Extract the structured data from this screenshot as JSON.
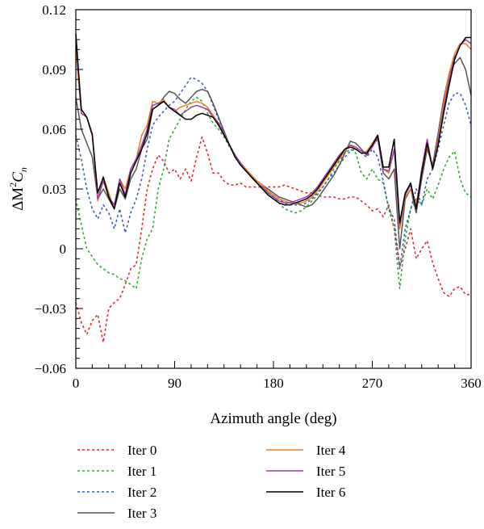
{
  "chart_data": {
    "type": "line",
    "title": "",
    "xlabel": "Azimuth angle (deg)",
    "ylabel_parts": {
      "base": "ΔM",
      "sup": "2",
      "mid": "C",
      "sub": "n"
    },
    "xlim": [
      0,
      360
    ],
    "ylim": [
      -0.06,
      0.12
    ],
    "xticks": [
      0,
      90,
      180,
      270,
      360
    ],
    "yticks": [
      -0.06,
      -0.03,
      0,
      0.03,
      0.06,
      0.09,
      0.12
    ],
    "ytick_labels": [
      "−0.06",
      "−0.03",
      "0",
      "0.03",
      "0.06",
      "0.09",
      "0.12"
    ],
    "grid": false,
    "legend_placement": "below",
    "x": [
      0,
      5,
      10,
      15,
      20,
      25,
      30,
      35,
      40,
      45,
      50,
      55,
      60,
      65,
      70,
      75,
      80,
      85,
      90,
      95,
      100,
      105,
      110,
      115,
      120,
      125,
      130,
      135,
      140,
      145,
      150,
      155,
      160,
      165,
      170,
      175,
      180,
      185,
      190,
      195,
      200,
      205,
      210,
      215,
      220,
      225,
      230,
      235,
      240,
      245,
      250,
      255,
      260,
      265,
      270,
      275,
      280,
      285,
      290,
      295,
      300,
      305,
      310,
      315,
      320,
      325,
      330,
      335,
      340,
      345,
      350,
      355,
      360
    ],
    "series": [
      {
        "name": "Iter 0",
        "color": "#e0282c",
        "dash": "3,3",
        "values": [
          -0.027,
          -0.037,
          -0.043,
          -0.036,
          -0.033,
          -0.047,
          -0.03,
          -0.027,
          -0.025,
          -0.018,
          -0.01,
          -0.008,
          0.01,
          0.03,
          0.04,
          0.047,
          0.044,
          0.038,
          0.04,
          0.035,
          0.04,
          0.034,
          0.046,
          0.056,
          0.048,
          0.038,
          0.038,
          0.034,
          0.032,
          0.032,
          0.033,
          0.031,
          0.031,
          0.031,
          0.031,
          0.031,
          0.031,
          0.031,
          0.032,
          0.031,
          0.03,
          0.029,
          0.028,
          0.028,
          0.027,
          0.026,
          0.026,
          0.026,
          0.025,
          0.025,
          0.026,
          0.026,
          0.024,
          0.022,
          0.019,
          0.02,
          0.016,
          0.022,
          0.01,
          -0.009,
          0.0,
          0.01,
          -0.005,
          0.0,
          0.004,
          -0.007,
          -0.015,
          -0.022,
          -0.024,
          -0.02,
          -0.019,
          -0.023,
          -0.023
        ]
      },
      {
        "name": "Iter 1",
        "color": "#2ab02a",
        "dash": "3,3",
        "values": [
          0.025,
          0.012,
          0.0,
          -0.004,
          -0.008,
          -0.01,
          -0.012,
          -0.013,
          -0.015,
          -0.016,
          -0.018,
          -0.02,
          -0.005,
          0.005,
          0.01,
          0.03,
          0.04,
          0.055,
          0.06,
          0.065,
          0.07,
          0.074,
          0.076,
          0.074,
          0.068,
          0.063,
          0.06,
          0.056,
          0.051,
          0.047,
          0.043,
          0.04,
          0.036,
          0.033,
          0.031,
          0.028,
          0.026,
          0.023,
          0.02,
          0.019,
          0.018,
          0.019,
          0.021,
          0.024,
          0.027,
          0.031,
          0.035,
          0.04,
          0.044,
          0.048,
          0.05,
          0.048,
          0.038,
          0.035,
          0.04,
          0.035,
          0.033,
          0.02,
          0.01,
          -0.02,
          0.005,
          0.02,
          0.025,
          0.022,
          0.03,
          0.025,
          0.032,
          0.04,
          0.046,
          0.049,
          0.035,
          0.028,
          0.026
        ]
      },
      {
        "name": "Iter 2",
        "color": "#3c5fb4",
        "dash": "3,3",
        "values": [
          0.057,
          0.045,
          0.03,
          0.02,
          0.015,
          0.022,
          0.018,
          0.01,
          0.02,
          0.008,
          0.018,
          0.025,
          0.035,
          0.05,
          0.062,
          0.066,
          0.069,
          0.072,
          0.074,
          0.078,
          0.082,
          0.086,
          0.085,
          0.083,
          0.079,
          0.072,
          0.065,
          0.059,
          0.052,
          0.047,
          0.042,
          0.039,
          0.036,
          0.033,
          0.031,
          0.029,
          0.027,
          0.025,
          0.023,
          0.022,
          0.022,
          0.022,
          0.023,
          0.025,
          0.028,
          0.031,
          0.035,
          0.038,
          0.042,
          0.046,
          0.049,
          0.05,
          0.048,
          0.046,
          0.05,
          0.046,
          0.034,
          0.02,
          0.015,
          -0.01,
          0.01,
          0.02,
          0.03,
          0.022,
          0.035,
          0.04,
          0.05,
          0.062,
          0.073,
          0.078,
          0.078,
          0.072,
          0.062
        ]
      },
      {
        "name": "Iter 3",
        "color": "#555555",
        "dash": "",
        "values": [
          0.076,
          0.06,
          0.053,
          0.046,
          0.025,
          0.03,
          0.025,
          0.02,
          0.03,
          0.025,
          0.035,
          0.04,
          0.05,
          0.055,
          0.07,
          0.072,
          0.076,
          0.079,
          0.078,
          0.075,
          0.073,
          0.076,
          0.079,
          0.08,
          0.079,
          0.073,
          0.066,
          0.059,
          0.052,
          0.047,
          0.043,
          0.039,
          0.036,
          0.034,
          0.032,
          0.03,
          0.028,
          0.026,
          0.025,
          0.024,
          0.023,
          0.022,
          0.021,
          0.022,
          0.025,
          0.029,
          0.033,
          0.037,
          0.042,
          0.048,
          0.054,
          0.053,
          0.05,
          0.047,
          0.052,
          0.055,
          0.038,
          0.035,
          0.04,
          0.0,
          0.025,
          0.03,
          0.018,
          0.035,
          0.05,
          0.042,
          0.058,
          0.075,
          0.088,
          0.093,
          0.096,
          0.09,
          0.077
        ]
      },
      {
        "name": "Iter 4",
        "color": "#f07c1e",
        "dash": "",
        "values": [
          0.1,
          0.068,
          0.066,
          0.058,
          0.024,
          0.036,
          0.028,
          0.02,
          0.035,
          0.03,
          0.04,
          0.045,
          0.057,
          0.062,
          0.074,
          0.073,
          0.075,
          0.071,
          0.069,
          0.071,
          0.072,
          0.073,
          0.074,
          0.073,
          0.071,
          0.067,
          0.063,
          0.058,
          0.052,
          0.047,
          0.043,
          0.04,
          0.037,
          0.034,
          0.032,
          0.029,
          0.027,
          0.025,
          0.024,
          0.023,
          0.023,
          0.023,
          0.024,
          0.026,
          0.029,
          0.033,
          0.037,
          0.041,
          0.045,
          0.049,
          0.052,
          0.05,
          0.048,
          0.049,
          0.053,
          0.057,
          0.04,
          0.038,
          0.05,
          0.01,
          0.026,
          0.03,
          0.022,
          0.038,
          0.052,
          0.04,
          0.055,
          0.073,
          0.088,
          0.098,
          0.103,
          0.103,
          0.1
        ]
      },
      {
        "name": "Iter 5",
        "color": "#9a3fa6",
        "dash": "",
        "values": [
          0.106,
          0.068,
          0.066,
          0.057,
          0.025,
          0.034,
          0.026,
          0.022,
          0.035,
          0.027,
          0.04,
          0.045,
          0.052,
          0.06,
          0.072,
          0.073,
          0.074,
          0.071,
          0.07,
          0.067,
          0.069,
          0.071,
          0.072,
          0.071,
          0.07,
          0.066,
          0.063,
          0.058,
          0.052,
          0.047,
          0.043,
          0.039,
          0.036,
          0.033,
          0.031,
          0.028,
          0.026,
          0.024,
          0.023,
          0.023,
          0.024,
          0.025,
          0.026,
          0.028,
          0.031,
          0.035,
          0.039,
          0.043,
          0.047,
          0.05,
          0.052,
          0.051,
          0.049,
          0.048,
          0.051,
          0.056,
          0.04,
          0.039,
          0.05,
          0.012,
          0.027,
          0.032,
          0.02,
          0.04,
          0.055,
          0.04,
          0.053,
          0.07,
          0.085,
          0.096,
          0.102,
          0.105,
          0.103
        ]
      },
      {
        "name": "Iter 6",
        "color": "#000000",
        "dash": "",
        "values": [
          0.108,
          0.07,
          0.066,
          0.057,
          0.028,
          0.036,
          0.026,
          0.02,
          0.033,
          0.026,
          0.038,
          0.044,
          0.05,
          0.058,
          0.07,
          0.072,
          0.074,
          0.071,
          0.069,
          0.067,
          0.065,
          0.065,
          0.067,
          0.068,
          0.067,
          0.066,
          0.062,
          0.057,
          0.052,
          0.046,
          0.042,
          0.039,
          0.036,
          0.033,
          0.03,
          0.027,
          0.025,
          0.023,
          0.022,
          0.022,
          0.023,
          0.024,
          0.025,
          0.027,
          0.03,
          0.034,
          0.038,
          0.042,
          0.046,
          0.05,
          0.051,
          0.05,
          0.048,
          0.048,
          0.052,
          0.057,
          0.041,
          0.041,
          0.055,
          0.013,
          0.028,
          0.033,
          0.02,
          0.038,
          0.053,
          0.04,
          0.052,
          0.068,
          0.082,
          0.095,
          0.102,
          0.106,
          0.106
        ]
      }
    ]
  }
}
